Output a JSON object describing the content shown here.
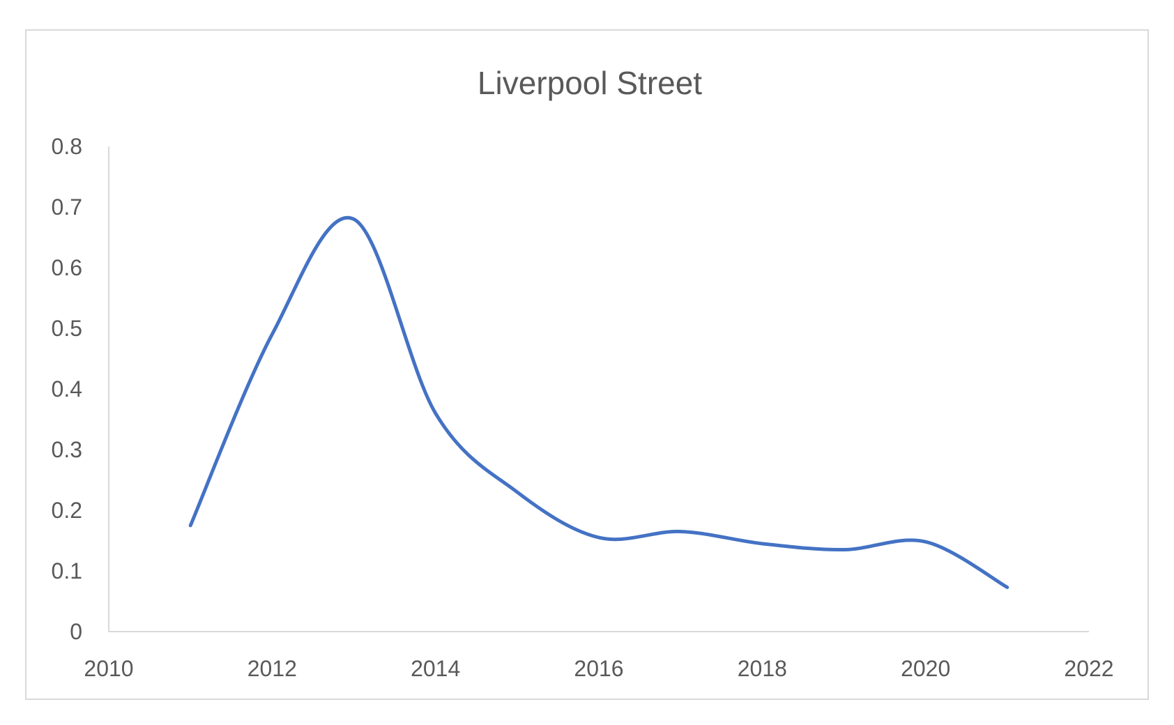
{
  "chart_data": {
    "type": "line",
    "title": "Liverpool Street",
    "xlabel": "",
    "ylabel": "",
    "xlim": [
      2010,
      2022
    ],
    "ylim": [
      0,
      0.8
    ],
    "x_ticks": [
      "2010",
      "2012",
      "2014",
      "2016",
      "2018",
      "2020",
      "2022"
    ],
    "y_ticks": [
      "0",
      "0.1",
      "0.2",
      "0.3",
      "0.4",
      "0.5",
      "0.6",
      "0.7",
      "0.8"
    ],
    "grid": false,
    "legend": "none",
    "smooth": true,
    "series": [
      {
        "color": "#4472c4",
        "x": [
          2011,
          2012,
          2013,
          2014,
          2015,
          2016,
          2017,
          2018,
          2019,
          2020,
          2021
        ],
        "y": [
          0.175,
          0.49,
          0.68,
          0.36,
          0.23,
          0.155,
          0.165,
          0.145,
          0.135,
          0.148,
          0.073
        ]
      }
    ]
  }
}
